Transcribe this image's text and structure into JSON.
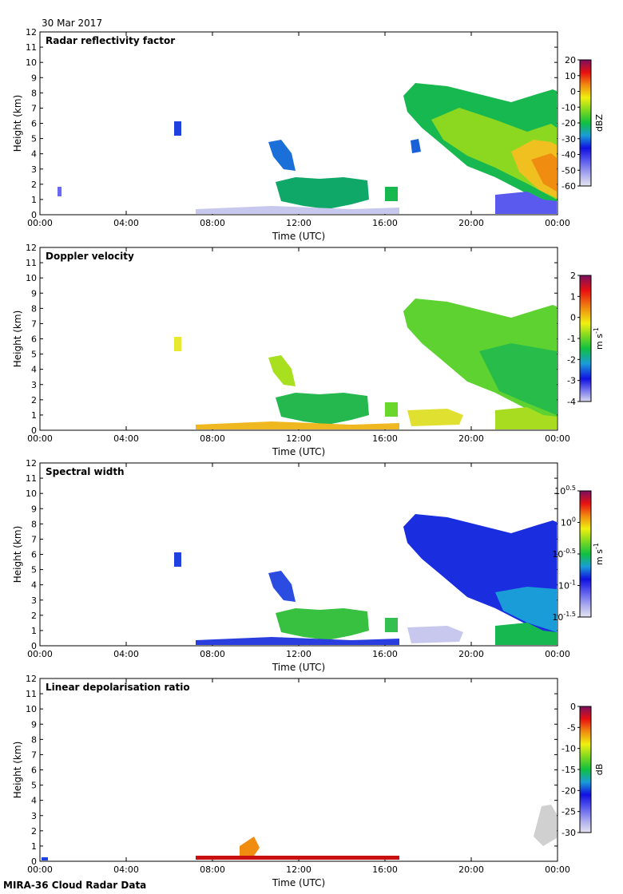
{
  "figure": {
    "date": "30 Mar 2017",
    "footer": "MIRA-36 Cloud Radar Data"
  },
  "axes": {
    "ylabel": "Height (km)",
    "xlabel": "Time (UTC)",
    "yticks": [
      "0",
      "1",
      "2",
      "3",
      "4",
      "5",
      "6",
      "7",
      "8",
      "9",
      "10",
      "11",
      "12"
    ],
    "xticks": [
      "00:00",
      "04:00",
      "08:00",
      "12:00",
      "16:00",
      "20:00",
      "00:00"
    ]
  },
  "chart_data": [
    {
      "type": "heatmap",
      "title": "Radar reflectivity factor",
      "xlabel": "Time (UTC)",
      "ylabel": "Height (km)",
      "xlim_hours": [
        0,
        24
      ],
      "ylim_km": [
        0,
        12
      ],
      "colorbar": {
        "units": "dBZ",
        "range": [
          -60,
          20
        ],
        "ticks": [
          "20",
          "10",
          "0",
          "-10",
          "-20",
          "-30",
          "-40",
          "-50",
          "-60"
        ]
      },
      "features": [
        {
          "desc": "upper cloud",
          "t_start_h": 17.2,
          "t_end_h": 24.0,
          "base_km": 3.0,
          "top_km": 8.5
        },
        {
          "desc": "low cloud",
          "t_start_h": 11.2,
          "t_end_h": 16.5,
          "base_km": 0.5,
          "top_km": 2.4
        }
      ]
    },
    {
      "type": "heatmap",
      "title": "Doppler velocity",
      "xlabel": "Time (UTC)",
      "ylabel": "Height (km)",
      "xlim_hours": [
        0,
        24
      ],
      "ylim_km": [
        0,
        12
      ],
      "colorbar": {
        "units": "m s",
        "units_exp": "-1",
        "range": [
          -4,
          2
        ],
        "ticks": [
          "2",
          "1",
          "0",
          "-1",
          "-2",
          "-3",
          "-4"
        ]
      }
    },
    {
      "type": "heatmap",
      "title": "Spectral width",
      "xlabel": "Time (UTC)",
      "ylabel": "Height (km)",
      "xlim_hours": [
        0,
        24
      ],
      "ylim_km": [
        0,
        12
      ],
      "colorbar": {
        "units": "m s",
        "units_exp": "-1",
        "scale": "log10",
        "range_exp": [
          -1.5,
          0.5
        ],
        "ticks": [
          {
            "base": "10",
            "exp": "0.5"
          },
          {
            "base": "10",
            "exp": "0"
          },
          {
            "base": "10",
            "exp": "-0.5"
          },
          {
            "base": "10",
            "exp": "-1"
          },
          {
            "base": "10",
            "exp": "-1.5"
          }
        ]
      }
    },
    {
      "type": "heatmap",
      "title": "Linear depolarisation ratio",
      "xlabel": "Time (UTC)",
      "ylabel": "Height (km)",
      "xlim_hours": [
        0,
        24
      ],
      "ylim_km": [
        0,
        12
      ],
      "colorbar": {
        "units": "dB",
        "range": [
          -30,
          0
        ],
        "ticks": [
          "0",
          "-5",
          "-10",
          "-15",
          "-20",
          "-25",
          "-30"
        ]
      }
    }
  ]
}
